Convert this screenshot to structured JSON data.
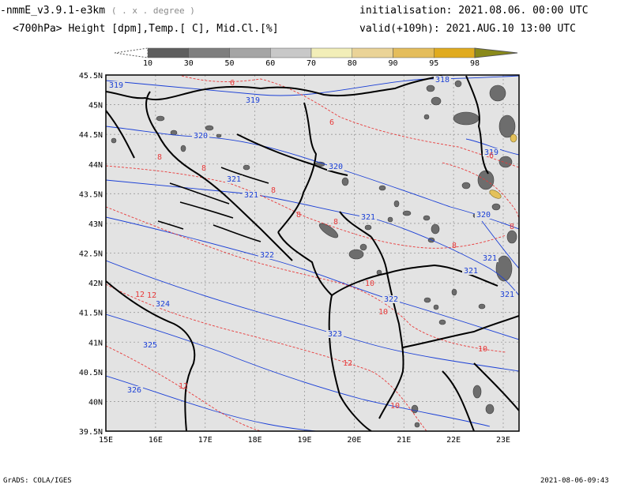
{
  "header": {
    "model": "-nmmE_v3.9.1-e3km",
    "units_note": "( . x . degree )",
    "init_label": "initialisation:",
    "init_value": "2021.08.06.  00:00 UTC",
    "subtitle": "<700hPa> Height [dpm],Temp.[ C], Mid.Cl.[%]",
    "valid_label": "valid(+109h):",
    "valid_value": "2021.AUG.10 13:00 UTC"
  },
  "colorbar": {
    "ticks": [
      "10",
      "30",
      "50",
      "60",
      "70",
      "80",
      "90",
      "95",
      "98"
    ],
    "colors": [
      "#5e5e5e",
      "#7e7e7e",
      "#a5a5a5",
      "#c8c8c8",
      "#f2eeb8",
      "#ead397",
      "#e4bd5c",
      "#e0ab1f"
    ]
  },
  "map": {
    "frame_bg": "#e3e3e3",
    "lat_labels": [
      "45.5N",
      "45N",
      "44.5N",
      "44N",
      "43.5N",
      "43N",
      "42.5N",
      "42N",
      "41.5N",
      "41N",
      "40.5N",
      "40N",
      "39.5N"
    ],
    "lon_labels": [
      "15E",
      "16E",
      "17E",
      "18E",
      "19E",
      "20E",
      "21E",
      "22E",
      "23E"
    ],
    "height_labels": [
      "318",
      "319",
      "319",
      "320",
      "320",
      "321",
      "321",
      "321",
      "322",
      "322",
      "321",
      "321",
      "323",
      "324",
      "325",
      "326",
      "319",
      "320",
      "321"
    ],
    "temp_labels": [
      "6",
      "6",
      "8",
      "8",
      "8",
      "8",
      "8",
      "10",
      "10",
      "12",
      "12",
      "12",
      "12",
      "10",
      "10",
      "6",
      "8",
      "8"
    ],
    "height_color": "#1a3fd6",
    "temp_color": "#e83a3a"
  },
  "footer": {
    "left": "GrADS: COLA/IGES",
    "right": "2021-08-06-09:43"
  }
}
